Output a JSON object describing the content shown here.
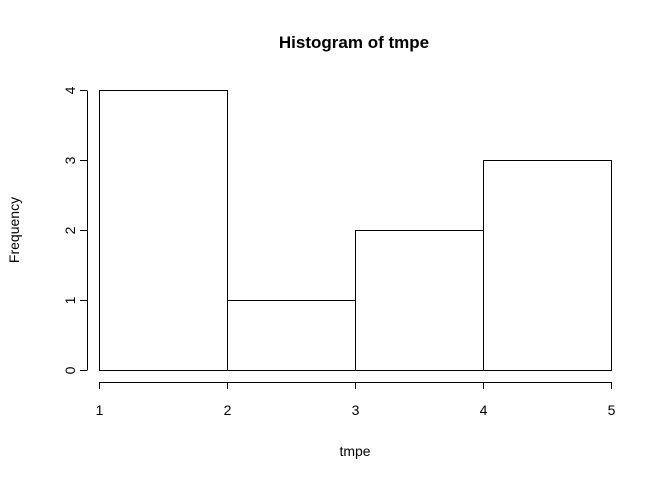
{
  "chart_data": {
    "type": "bar",
    "subtype": "histogram",
    "title": "Histogram of tmpe",
    "xlabel": "tmpe",
    "ylabel": "Frequency",
    "bins": [
      {
        "from": 1,
        "to": 2,
        "count": 4
      },
      {
        "from": 2,
        "to": 3,
        "count": 1
      },
      {
        "from": 3,
        "to": 4,
        "count": 2
      },
      {
        "from": 4,
        "to": 5,
        "count": 3
      }
    ],
    "xlim": [
      1,
      5
    ],
    "ylim": [
      0,
      4
    ],
    "x_ticks": [
      1,
      2,
      3,
      4,
      5
    ],
    "y_ticks": [
      0,
      1,
      2,
      3,
      4
    ],
    "grid": false,
    "legend": "none",
    "colors": {
      "bar_fill": "#ffffff",
      "bar_stroke": "#000000",
      "axis": "#000000"
    }
  }
}
